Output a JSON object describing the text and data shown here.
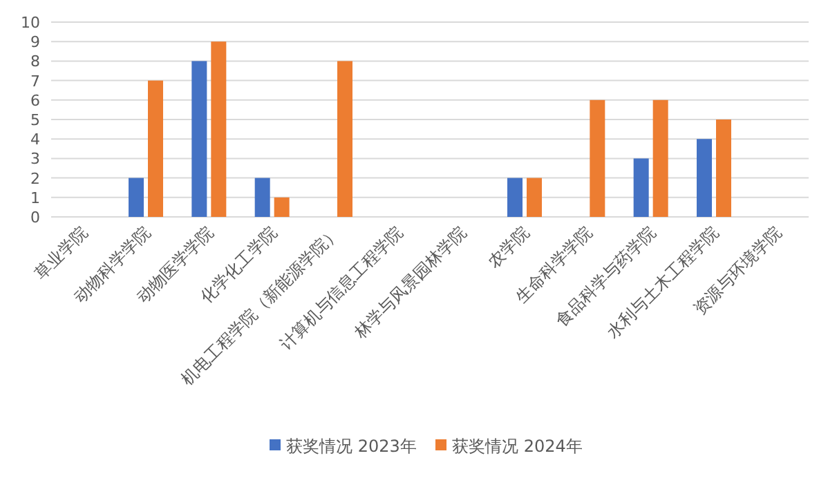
{
  "chart_data": {
    "type": "bar",
    "categories": [
      "草业学院",
      "动物科学学院",
      "动物医学学院",
      "化学化工学院",
      "机电工程学院（新能源学院）",
      "计算机与信息工程学院",
      "林学与风景园林学院",
      "农学院",
      "生命科学学院",
      "食品科学与药学院",
      "水利与土木工程学院",
      "资源与环境学院"
    ],
    "series": [
      {
        "name": "获奖情况 2023年",
        "color": "#4472c4",
        "values": [
          null,
          2,
          8,
          2,
          null,
          null,
          null,
          2,
          null,
          3,
          4,
          null
        ]
      },
      {
        "name": "获奖情况 2024年",
        "color": "#ed7d31",
        "values": [
          null,
          7,
          9,
          1,
          8,
          null,
          null,
          2,
          6,
          6,
          5,
          null
        ]
      }
    ],
    "ylim": [
      0,
      10
    ],
    "yticks": [
      0,
      1,
      2,
      3,
      4,
      5,
      6,
      7,
      8,
      9,
      10
    ],
    "grid": "y",
    "legend": "bottom"
  }
}
